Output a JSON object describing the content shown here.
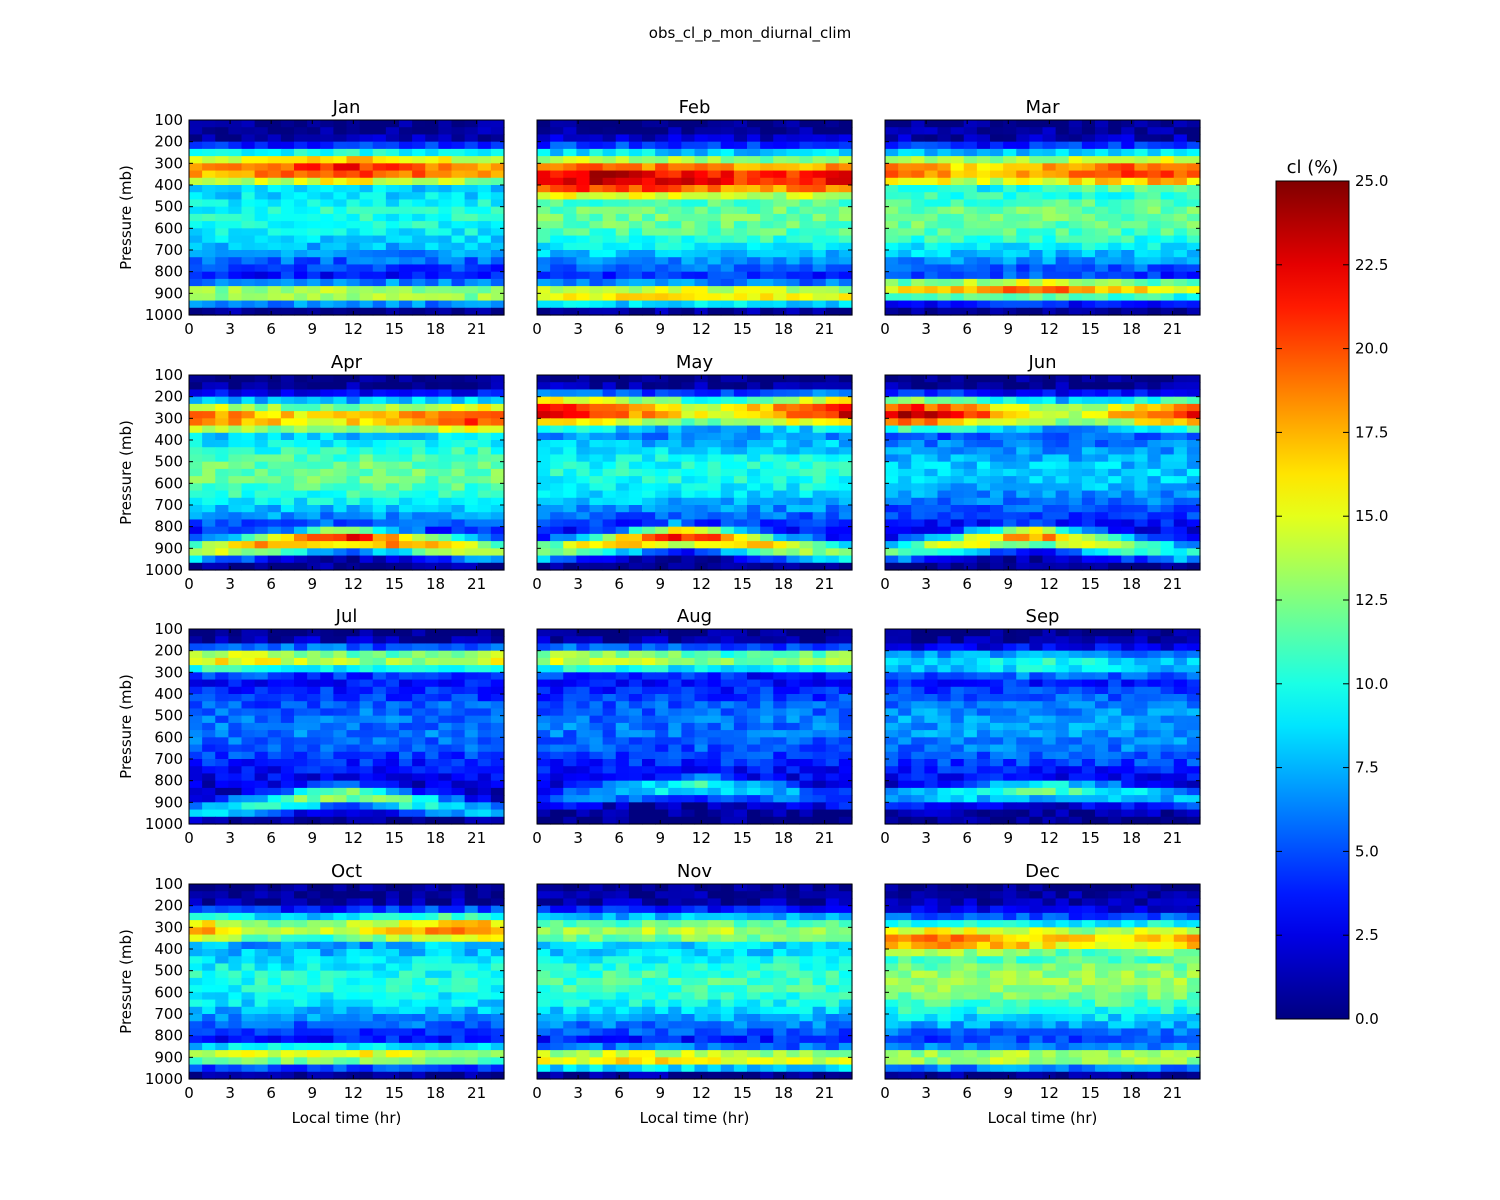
{
  "figure": {
    "title": "obs_cl_p_mon_diurnal_clim"
  },
  "chart_data": {
    "type": "heatmap",
    "layout": "4x3 small multiples",
    "xlabel": "Local time (hr)",
    "ylabel": "Pressure (mb)",
    "xlim": [
      0,
      23
    ],
    "ylim": [
      1000,
      100
    ],
    "x_ticks": [
      "0",
      "3",
      "6",
      "9",
      "12",
      "15",
      "18",
      "21"
    ],
    "y_ticks": [
      "100",
      "200",
      "300",
      "400",
      "500",
      "600",
      "700",
      "800",
      "900",
      "1000"
    ],
    "x_bins": 24,
    "y_bins": 27,
    "colorbar": {
      "label": "cl (%)",
      "min": 0,
      "max": 25,
      "colormap": "jet",
      "ticks": [
        "0.0",
        "2.5",
        "5.0",
        "7.5",
        "10.0",
        "12.5",
        "15.0",
        "17.5",
        "20.0",
        "22.5",
        "25.0"
      ]
    },
    "panels": [
      {
        "title": "Jan",
        "upper_max": 22,
        "upper_center": 330,
        "upper_width": 90,
        "upper_peak_hour": 12,
        "upper_diurnal_amp": 4,
        "mid_base": 10,
        "low_max": 15,
        "low_center": 900,
        "low_peak_hour": 11,
        "low_diurnal_amp": 1,
        "low_drift": 0
      },
      {
        "title": "Feb",
        "upper_max": 24,
        "upper_center": 370,
        "upper_width": 120,
        "upper_peak_hour": 5,
        "upper_diurnal_amp": 3,
        "mid_base": 12,
        "low_max": 17,
        "low_center": 905,
        "low_peak_hour": 11,
        "low_diurnal_amp": 1,
        "low_drift": 0
      },
      {
        "title": "Mar",
        "upper_max": 21,
        "upper_center": 340,
        "upper_width": 100,
        "upper_peak_hour": 20,
        "upper_diurnal_amp": 4,
        "mid_base": 12,
        "low_max": 20,
        "low_center": 880,
        "low_peak_hour": 11,
        "low_diurnal_amp": 5,
        "low_drift": 0
      },
      {
        "title": "Apr",
        "upper_max": 21,
        "upper_center": 300,
        "upper_width": 90,
        "upper_peak_hour": 22,
        "upper_diurnal_amp": 5,
        "mid_base": 12,
        "low_max": 22,
        "low_center": 850,
        "low_peak_hour": 12,
        "low_diurnal_amp": 8,
        "low_drift": 60
      },
      {
        "title": "May",
        "upper_max": 24,
        "upper_center": 270,
        "upper_width": 85,
        "upper_peak_hour": 1,
        "upper_diurnal_amp": 9,
        "mid_base": 10,
        "low_max": 22,
        "low_center": 840,
        "low_peak_hour": 11,
        "low_diurnal_amp": 10,
        "low_drift": 80
      },
      {
        "title": "Jun",
        "upper_max": 24,
        "upper_center": 280,
        "upper_width": 80,
        "upper_peak_hour": 2,
        "upper_diurnal_amp": 10,
        "mid_base": 8,
        "low_max": 19,
        "low_center": 840,
        "low_peak_hour": 11,
        "low_diurnal_amp": 9,
        "low_drift": 80
      },
      {
        "title": "Jul",
        "upper_max": 16,
        "upper_center": 240,
        "upper_width": 70,
        "upper_peak_hour": 3,
        "upper_diurnal_amp": 3,
        "mid_base": 6,
        "low_max": 14,
        "low_center": 860,
        "low_peak_hour": 12,
        "low_diurnal_amp": 7,
        "low_drift": 90
      },
      {
        "title": "Aug",
        "upper_max": 15,
        "upper_center": 240,
        "upper_width": 70,
        "upper_peak_hour": 4,
        "upper_diurnal_amp": 3,
        "mid_base": 6,
        "low_max": 11,
        "low_center": 820,
        "low_peak_hour": 12,
        "low_diurnal_amp": 6,
        "low_drift": 60
      },
      {
        "title": "Sep",
        "upper_max": 10,
        "upper_center": 260,
        "upper_width": 80,
        "upper_peak_hour": 12,
        "upper_diurnal_amp": 2,
        "mid_base": 7,
        "low_max": 12,
        "low_center": 840,
        "low_peak_hour": 12,
        "low_diurnal_amp": 5,
        "low_drift": 40
      },
      {
        "title": "Oct",
        "upper_max": 20,
        "upper_center": 310,
        "upper_width": 80,
        "upper_peak_hour": 21,
        "upper_diurnal_amp": 7,
        "mid_base": 10,
        "low_max": 16,
        "low_center": 890,
        "low_peak_hour": 11,
        "low_diurnal_amp": 2,
        "low_drift": 0
      },
      {
        "title": "Nov",
        "upper_max": 14,
        "upper_center": 320,
        "upper_width": 90,
        "upper_peak_hour": 12,
        "upper_diurnal_amp": 1,
        "mid_base": 11,
        "low_max": 17,
        "low_center": 905,
        "low_peak_hour": 8,
        "low_diurnal_amp": 2,
        "low_drift": 0
      },
      {
        "title": "Dec",
        "upper_max": 19,
        "upper_center": 360,
        "upper_width": 100,
        "upper_peak_hour": 4,
        "upper_diurnal_amp": 3,
        "mid_base": 13,
        "low_max": 15,
        "low_center": 900,
        "low_peak_hour": 11,
        "low_diurnal_amp": 1,
        "low_drift": 0
      }
    ]
  }
}
